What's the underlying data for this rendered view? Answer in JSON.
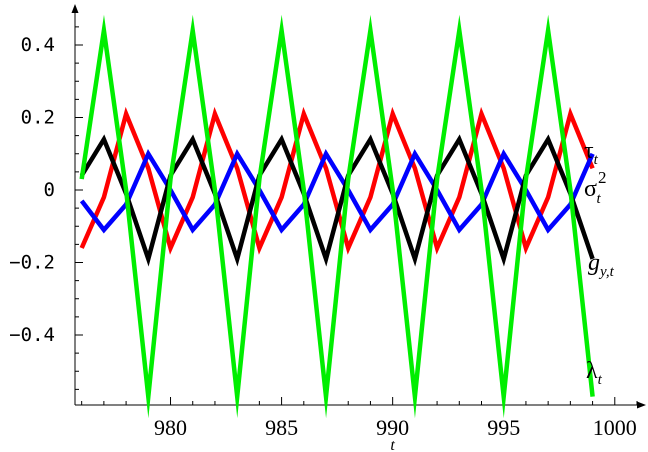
{
  "chart_data": {
    "type": "line",
    "title": "",
    "xlabel": "t",
    "ylabel": "",
    "xlim": [
      975.7,
      1001
    ],
    "ylim": [
      -0.58,
      0.5
    ],
    "x_ticks": [
      980,
      985,
      990,
      995,
      1000
    ],
    "x_tick_labels": [
      "980",
      "985",
      "990",
      "995",
      "1000"
    ],
    "y_ticks": [
      -0.4,
      -0.2,
      0,
      0.2,
      0.4
    ],
    "y_tick_labels": [
      "-0.4",
      "-0.2",
      "0",
      "0.2",
      "0.4"
    ],
    "grid": false,
    "series": [
      {
        "key": "tau",
        "color": "#ff0000",
        "label_main": "τ",
        "label_sub": "t",
        "label_sup": "",
        "x": [
          976,
          977,
          978,
          979,
          980,
          981,
          982,
          983,
          984,
          985,
          986,
          987,
          988,
          989,
          990,
          991,
          992,
          993,
          994,
          995,
          996,
          997,
          998,
          999
        ],
        "values": [
          -0.16,
          -0.02,
          0.21,
          0.06,
          -0.16,
          -0.02,
          0.21,
          0.06,
          -0.16,
          -0.02,
          0.21,
          0.06,
          -0.16,
          -0.02,
          0.21,
          0.06,
          -0.16,
          -0.02,
          0.21,
          0.06,
          -0.16,
          -0.02,
          0.21,
          0.06
        ]
      },
      {
        "key": "sigma",
        "color": "#0000ff",
        "label_main": "σ",
        "label_sub": "t",
        "label_sup": "2",
        "x": [
          976,
          977,
          978,
          979,
          980,
          981,
          982,
          983,
          984,
          985,
          986,
          987,
          988,
          989,
          990,
          991,
          992,
          993,
          994,
          995,
          996,
          997,
          998,
          999
        ],
        "values": [
          -0.03,
          -0.11,
          -0.04,
          0.1,
          0.0,
          -0.11,
          -0.04,
          0.1,
          0.0,
          -0.11,
          -0.04,
          0.1,
          0.0,
          -0.11,
          -0.04,
          0.1,
          0.0,
          -0.11,
          -0.04,
          0.1,
          0.0,
          -0.11,
          -0.04,
          0.1
        ]
      },
      {
        "key": "g",
        "color": "#000000",
        "label_main": "g",
        "label_sub": "y,t",
        "label_sup": "",
        "x": [
          976,
          977,
          978,
          979,
          980,
          981,
          982,
          983,
          984,
          985,
          986,
          987,
          988,
          989,
          990,
          991,
          992,
          993,
          994,
          995,
          996,
          997,
          998,
          999
        ],
        "values": [
          0.04,
          0.14,
          -0.01,
          -0.19,
          0.04,
          0.14,
          -0.01,
          -0.19,
          0.04,
          0.14,
          -0.01,
          -0.19,
          0.04,
          0.14,
          -0.01,
          -0.19,
          0.04,
          0.14,
          -0.01,
          -0.19,
          0.04,
          0.14,
          -0.01,
          -0.19
        ]
      },
      {
        "key": "lambda",
        "color": "#00ee00",
        "label_main": "λ",
        "label_sub": "t",
        "label_sup": "",
        "x": [
          976,
          977,
          978,
          979,
          980,
          981,
          982,
          983,
          984,
          985,
          986,
          987,
          988,
          989,
          990,
          991,
          992,
          993,
          994,
          995,
          996,
          997,
          998,
          999
        ],
        "values": [
          0.03,
          0.44,
          0.0,
          -0.57,
          0.03,
          0.44,
          0.0,
          -0.57,
          0.03,
          0.44,
          0.0,
          -0.57,
          0.03,
          0.44,
          0.0,
          -0.57,
          0.03,
          0.44,
          0.0,
          -0.57,
          0.03,
          0.44,
          0.0,
          -0.57
        ]
      }
    ]
  }
}
